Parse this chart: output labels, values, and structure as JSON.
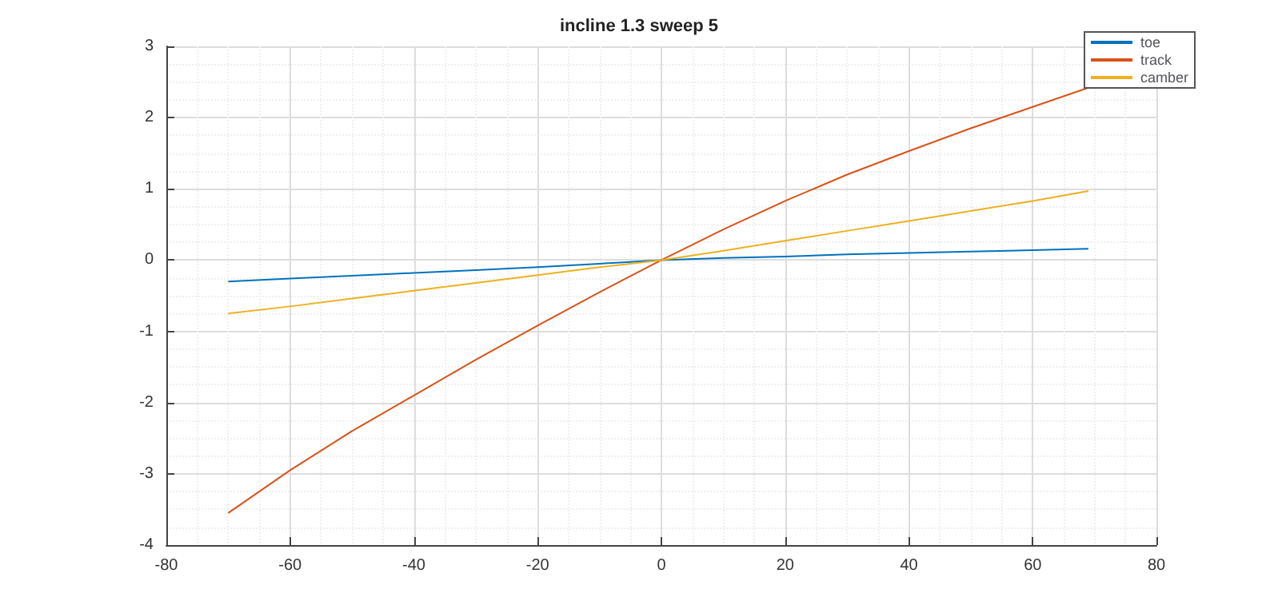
{
  "chart_data": {
    "type": "line",
    "title": "incline 1.3 sweep 5",
    "x": [
      -70,
      -60,
      -50,
      -40,
      -30,
      -20,
      -10,
      0,
      10,
      20,
      30,
      40,
      50,
      60,
      69
    ],
    "series": [
      {
        "name": "toe",
        "color": "#0072bd",
        "values": [
          -0.3,
          -0.26,
          -0.22,
          -0.18,
          -0.14,
          -0.1,
          -0.05,
          0,
          0.03,
          0.05,
          0.08,
          0.1,
          0.12,
          0.14,
          0.16
        ]
      },
      {
        "name": "track",
        "color": "#d95319",
        "values": [
          -3.55,
          -2.95,
          -2.4,
          -1.9,
          -1.4,
          -0.92,
          -0.45,
          0,
          0.43,
          0.83,
          1.2,
          1.53,
          1.85,
          2.15,
          2.42
        ]
      },
      {
        "name": "camber",
        "color": "#edb120",
        "values": [
          -0.75,
          -0.65,
          -0.54,
          -0.43,
          -0.32,
          -0.21,
          -0.1,
          0,
          0.13,
          0.27,
          0.41,
          0.55,
          0.69,
          0.83,
          0.97
        ]
      }
    ],
    "xlim": [
      -80,
      80
    ],
    "xticks": [
      -80,
      -60,
      -40,
      -20,
      0,
      20,
      40,
      60,
      80
    ],
    "ylim": [
      -4,
      3
    ],
    "yticks": [
      -4,
      -3,
      -2,
      -1,
      0,
      1,
      2,
      3
    ],
    "grid": true,
    "legend": "top right",
    "marker": "none",
    "line_style": "solid"
  }
}
